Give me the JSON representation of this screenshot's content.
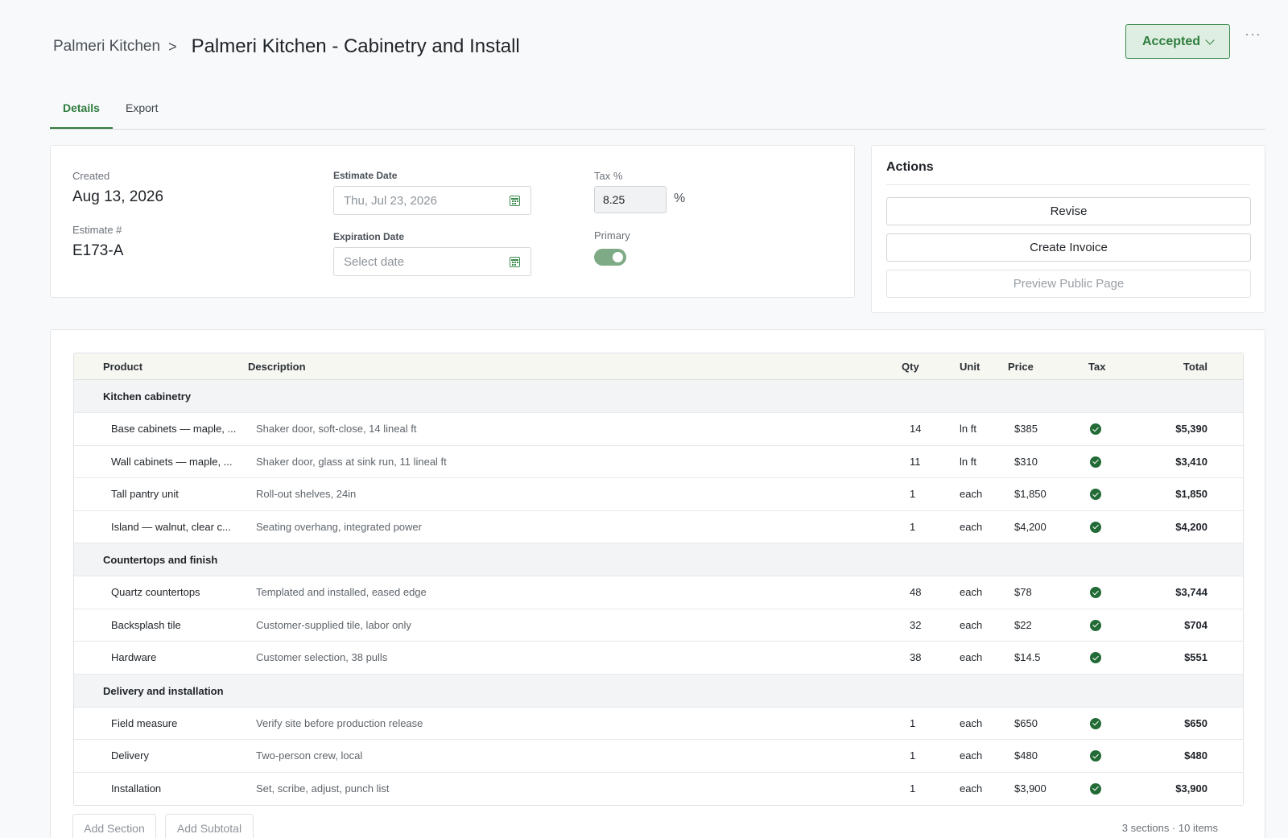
{
  "header": {
    "breadcrumb": "Palmeri Kitchen",
    "breadcrumb_sep": ">",
    "title": "Palmeri Kitchen - Cabinetry and Install",
    "status": "Accepted",
    "more": "···"
  },
  "tabs": [
    {
      "label": "Details",
      "active": true
    },
    {
      "label": "Export",
      "active": false
    }
  ],
  "details": {
    "created_label": "Created",
    "created_value": "Aug 13, 2026",
    "estimate_no_label": "Estimate #",
    "estimate_no_value": "E173-A",
    "estimate_date_label": "Estimate Date",
    "estimate_date_value": "Thu, Jul 23, 2026",
    "expiration_date_label": "Expiration Date",
    "expiration_date_placeholder": "Select date",
    "tax_label": "Tax %",
    "tax_value": "8.25",
    "tax_unit": "%",
    "primary_label": "Primary",
    "primary_on": true
  },
  "actions": {
    "title": "Actions",
    "revise": "Revise",
    "create_invoice": "Create Invoice",
    "preview_public": "Preview Public Page"
  },
  "table": {
    "columns": {
      "product": "Product",
      "description": "Description",
      "qty": "Qty",
      "unit": "Unit",
      "price": "Price",
      "tax": "Tax",
      "total": "Total"
    },
    "sections": [
      {
        "name": "Kitchen cabinetry",
        "rows": [
          {
            "product": "Base cabinets — maple, ...",
            "description": "Shaker door, soft-close, 14 lineal ft",
            "qty": "14",
            "unit": "ln ft",
            "price": "$385",
            "total": "$5,390"
          },
          {
            "product": "Wall cabinets — maple, ...",
            "description": "Shaker door, glass at sink run, 11 lineal ft",
            "qty": "11",
            "unit": "ln ft",
            "price": "$310",
            "total": "$3,410"
          },
          {
            "product": "Tall pantry unit",
            "description": "Roll-out shelves, 24in",
            "qty": "1",
            "unit": "each",
            "price": "$1,850",
            "total": "$1,850"
          },
          {
            "product": "Island — walnut, clear c...",
            "description": "Seating overhang, integrated power",
            "qty": "1",
            "unit": "each",
            "price": "$4,200",
            "total": "$4,200"
          }
        ]
      },
      {
        "name": "Countertops and finish",
        "rows": [
          {
            "product": "Quartz countertops",
            "description": "Templated and installed, eased edge",
            "qty": "48",
            "unit": "each",
            "price": "$78",
            "total": "$3,744"
          },
          {
            "product": "Backsplash tile",
            "description": "Customer-supplied tile, labor only",
            "qty": "32",
            "unit": "each",
            "price": "$22",
            "total": "$704"
          },
          {
            "product": "Hardware",
            "description": "Customer selection, 38 pulls",
            "qty": "38",
            "unit": "each",
            "price": "$14.5",
            "total": "$551"
          }
        ]
      },
      {
        "name": "Delivery and installation",
        "rows": [
          {
            "product": "Field measure",
            "description": "Verify site before production release",
            "qty": "1",
            "unit": "each",
            "price": "$650",
            "total": "$650"
          },
          {
            "product": "Delivery",
            "description": "Two-person crew, local",
            "qty": "1",
            "unit": "each",
            "price": "$480",
            "total": "$480"
          },
          {
            "product": "Installation",
            "description": "Set, scribe, adjust, punch list",
            "qty": "1",
            "unit": "each",
            "price": "$3,900",
            "total": "$3,900"
          }
        ]
      }
    ]
  },
  "footer": {
    "add_section": "Add Section",
    "add_subtotal": "Add Subtotal",
    "summary": "3 sections · 10 items"
  },
  "colors": {
    "accent": "#2e7d3e",
    "status_bg": "#dfeee2",
    "check": "#226b36"
  }
}
